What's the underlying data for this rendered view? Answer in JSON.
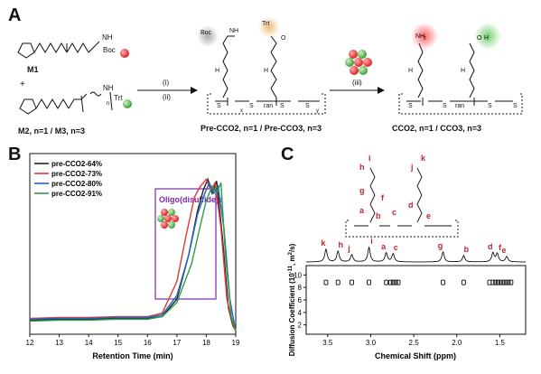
{
  "panels": {
    "a": "A",
    "b": "B",
    "c": "C"
  },
  "scheme": {
    "m1_label": "M1",
    "m2_label": "M2, n=1 / M3, n=3",
    "step_a": "(i)",
    "step_b": "(ii)",
    "step_c": "(iii)",
    "pre_label": "Pre-CCO2, n=1 / Pre-CCO3, n=3",
    "cco_label": "CCO2, n=1 / CCO3, n=3",
    "plus": "+",
    "boc": "Boc",
    "trt": "Trt",
    "nh": "NH",
    "h": "H",
    "n": "N",
    "o": "O",
    "nh2": "NH",
    "sub2": "2",
    "sub_x": "x",
    "sub_y": "y",
    "ran": "ran",
    "s": "S",
    "sub_n": "n",
    "oh_o": "O",
    "oh_h": "H"
  },
  "chart_data": {
    "type": "line",
    "xlabel": "Retention Time (min)",
    "xlim": [
      12,
      19
    ],
    "xticks": [
      "12",
      "13",
      "14",
      "15",
      "16",
      "17",
      "18",
      "19"
    ],
    "annotation": "Oligo(disulfide)s",
    "series": [
      {
        "name": "pre-CCO2-64%",
        "color": "#222222",
        "x": [
          12,
          13,
          14,
          15,
          16,
          16.5,
          17,
          17.4,
          17.7,
          17.9,
          18.05,
          18.2,
          18.35,
          18.55,
          18.75,
          18.9,
          19
        ],
        "y": [
          0.08,
          0.085,
          0.085,
          0.09,
          0.09,
          0.1,
          0.2,
          0.45,
          0.7,
          0.82,
          0.88,
          0.8,
          0.87,
          0.55,
          0.15,
          0.05,
          0.02
        ]
      },
      {
        "name": "pre-CCO2-73%",
        "color": "#e53935",
        "x": [
          12,
          13,
          14,
          15,
          16,
          16.5,
          17,
          17.3,
          17.6,
          17.8,
          18.0,
          18.15,
          18.3,
          18.5,
          18.7,
          18.9,
          19
        ],
        "y": [
          0.09,
          0.095,
          0.095,
          0.1,
          0.1,
          0.12,
          0.3,
          0.55,
          0.78,
          0.84,
          0.88,
          0.82,
          0.86,
          0.6,
          0.2,
          0.06,
          0.02
        ]
      },
      {
        "name": "pre-CCO2-80%",
        "color": "#1e66c8",
        "x": [
          12,
          13,
          14,
          15,
          16,
          16.5,
          17,
          17.4,
          17.7,
          17.95,
          18.1,
          18.25,
          18.4,
          18.6,
          18.8,
          18.95,
          19
        ],
        "y": [
          0.085,
          0.09,
          0.09,
          0.095,
          0.095,
          0.11,
          0.22,
          0.45,
          0.68,
          0.8,
          0.86,
          0.8,
          0.84,
          0.6,
          0.2,
          0.06,
          0.02
        ]
      },
      {
        "name": "pre-CCO2-91%",
        "color": "#2e9e44",
        "x": [
          12,
          13,
          14,
          15,
          16,
          16.5,
          17,
          17.5,
          17.8,
          18.0,
          18.2,
          18.35,
          18.5,
          18.65,
          18.85,
          19
        ],
        "y": [
          0.075,
          0.08,
          0.08,
          0.085,
          0.085,
          0.1,
          0.18,
          0.4,
          0.62,
          0.76,
          0.84,
          0.8,
          0.86,
          0.45,
          0.1,
          0.02
        ]
      }
    ]
  },
  "nmr": {
    "xlabel": "Chemical Shift (ppm)",
    "ylabel_line1": "Diffusion Coefficient (10",
    "ylabel_exp": "-11",
    "ylabel_line2": ", m",
    "ylabel_exp2": "2",
    "ylabel_line3": "/s)",
    "xticks": [
      "3.5",
      "3.0",
      "2.5",
      "2.0",
      "1.5"
    ],
    "xtick_values": [
      3.5,
      3.0,
      2.5,
      2.0,
      1.5
    ],
    "xlim": [
      3.75,
      1.2
    ],
    "yticks": [
      "10",
      "8",
      "6",
      "4",
      "2"
    ],
    "ytick_values": [
      10,
      8,
      6,
      4,
      2
    ],
    "ylim": [
      0.5,
      11.5
    ],
    "diffusion_value": 8.8,
    "dots_ppm": [
      3.52,
      3.38,
      3.22,
      3.02,
      2.82,
      2.77,
      2.74,
      2.71,
      2.68,
      2.16,
      1.92,
      1.62,
      1.58,
      1.55,
      1.52,
      1.49,
      1.46,
      1.43,
      1.4,
      1.37
    ],
    "peaks": [
      {
        "ppm": 3.52,
        "h": 14,
        "label": "k"
      },
      {
        "ppm": 3.38,
        "h": 12,
        "label": "h"
      },
      {
        "ppm": 3.22,
        "h": 8,
        "label": "j"
      },
      {
        "ppm": 3.02,
        "h": 16,
        "label": "i"
      },
      {
        "ppm": 2.82,
        "h": 10,
        "label": "a"
      },
      {
        "ppm": 2.74,
        "h": 9,
        "label": "c"
      },
      {
        "ppm": 2.16,
        "h": 11,
        "label": "g"
      },
      {
        "ppm": 1.92,
        "h": 7,
        "label": "b"
      },
      {
        "ppm": 1.58,
        "h": 10,
        "label": "d"
      },
      {
        "ppm": 1.53,
        "h": 9,
        "label": "f"
      },
      {
        "ppm": 1.42,
        "h": 6,
        "label": "e"
      }
    ],
    "struct_labels": [
      "h",
      "i",
      "j",
      "k",
      "g",
      "f",
      "a",
      "b",
      "c",
      "d",
      "e"
    ]
  }
}
